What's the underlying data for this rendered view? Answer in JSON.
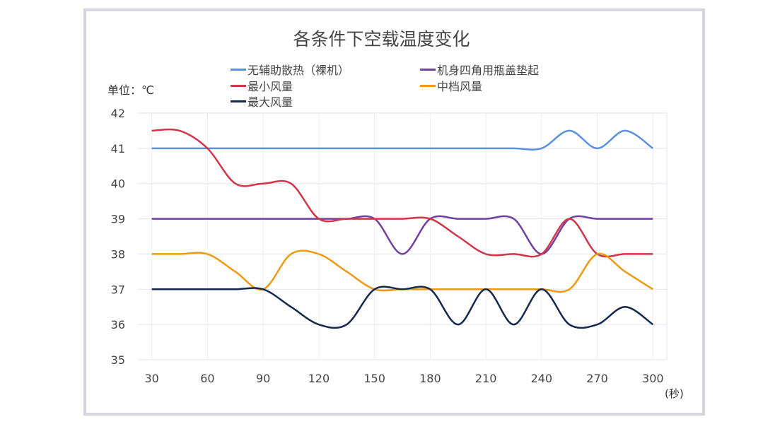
{
  "chart_data": {
    "type": "line",
    "title": "各条件下空载温度变化",
    "ylabel": "单位：℃",
    "xlabel": "(秒)",
    "x": [
      30,
      45,
      60,
      75,
      90,
      105,
      120,
      135,
      150,
      165,
      180,
      195,
      210,
      225,
      240,
      255,
      270,
      285,
      300
    ],
    "xticks": [
      30,
      60,
      90,
      120,
      150,
      180,
      210,
      240,
      270,
      300
    ],
    "yticks": [
      35,
      36,
      37,
      38,
      39,
      40,
      41,
      42
    ],
    "xlim": [
      22.5,
      307.5
    ],
    "ylim": [
      35,
      42
    ],
    "grid": true,
    "legend_position": "top",
    "series": [
      {
        "name": "无辅助散热（裸机）",
        "color": "#5b8fe0",
        "values": [
          41,
          41,
          41,
          41,
          41,
          41,
          41,
          41,
          41,
          41,
          41,
          41,
          41,
          41,
          41,
          41.5,
          41,
          41.5,
          41
        ]
      },
      {
        "name": "机身四角用瓶盖垫起",
        "color": "#7140a0",
        "values": [
          39,
          39,
          39,
          39,
          39,
          39,
          39,
          39,
          39,
          38,
          39,
          39,
          39,
          39,
          38,
          39,
          39,
          39,
          39
        ]
      },
      {
        "name": "最小风量",
        "color": "#d13548",
        "values": [
          41.5,
          41.5,
          41,
          40,
          40,
          40,
          39,
          39,
          39,
          39,
          39,
          38.5,
          38,
          38,
          38,
          39,
          38,
          38,
          38
        ]
      },
      {
        "name": "中档风量",
        "color": "#f0990f",
        "values": [
          38,
          38,
          38,
          37.5,
          37,
          38,
          38,
          37.5,
          37,
          37,
          37,
          37,
          37,
          37,
          37,
          37,
          38,
          37.5,
          37
        ]
      },
      {
        "name": "最大风量",
        "color": "#14274e",
        "values": [
          37,
          37,
          37,
          37,
          37,
          36.5,
          36,
          36,
          37,
          37,
          37,
          36,
          37,
          36,
          37,
          36,
          36,
          36.5,
          36
        ]
      }
    ]
  }
}
